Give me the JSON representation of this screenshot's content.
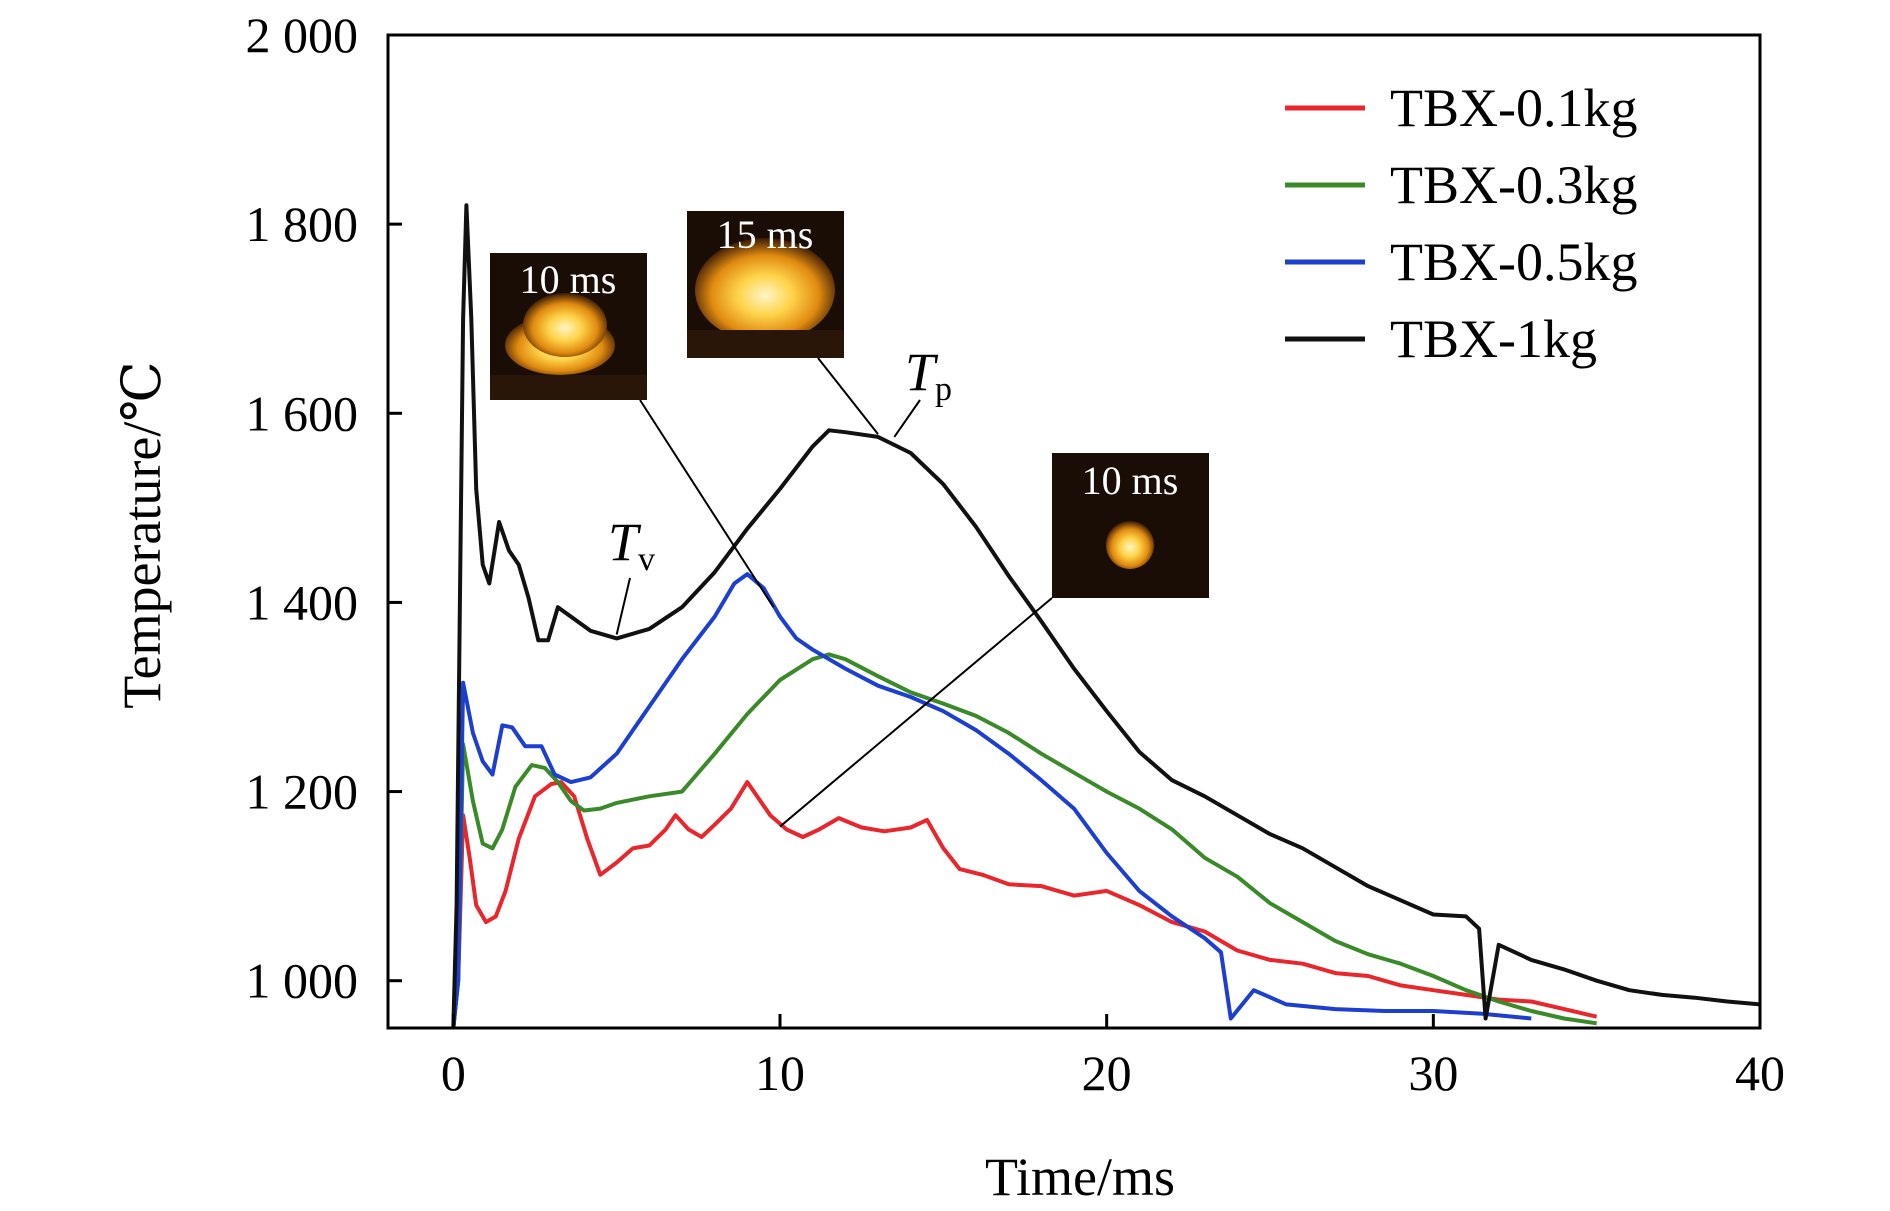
{
  "chart_data": {
    "type": "line",
    "title": "",
    "xlabel": "Time/ms",
    "ylabel": "Temperature/℃",
    "xlim": [
      -2,
      40
    ],
    "ylim": [
      950,
      2000
    ],
    "x_ticks": [
      0,
      10,
      20,
      30,
      40
    ],
    "x_tick_labels": [
      "0",
      "10",
      "20",
      "30",
      "40"
    ],
    "y_ticks": [
      1000,
      1200,
      1400,
      1600,
      1800,
      2000
    ],
    "y_tick_labels": [
      "1 000",
      "1 200",
      "1 400",
      "1 600",
      "1 800",
      "2 000"
    ],
    "grid": false,
    "legend_position": "top-right",
    "series": [
      {
        "name": "TBX-0.1kg",
        "color": "#e8262b",
        "points": [
          [
            0,
            950
          ],
          [
            0.15,
            1000
          ],
          [
            0.3,
            1175
          ],
          [
            0.5,
            1130
          ],
          [
            0.7,
            1080
          ],
          [
            1.0,
            1062
          ],
          [
            1.3,
            1068
          ],
          [
            1.6,
            1095
          ],
          [
            2.0,
            1150
          ],
          [
            2.5,
            1195
          ],
          [
            3.0,
            1208
          ],
          [
            3.3,
            1210
          ],
          [
            3.7,
            1195
          ],
          [
            4.1,
            1150
          ],
          [
            4.5,
            1112
          ],
          [
            5.0,
            1125
          ],
          [
            5.5,
            1140
          ],
          [
            6.0,
            1143
          ],
          [
            6.5,
            1160
          ],
          [
            6.8,
            1175
          ],
          [
            7.2,
            1160
          ],
          [
            7.6,
            1152
          ],
          [
            8.0,
            1165
          ],
          [
            8.5,
            1182
          ],
          [
            9.0,
            1210
          ],
          [
            9.3,
            1195
          ],
          [
            9.7,
            1175
          ],
          [
            10.2,
            1160
          ],
          [
            10.7,
            1152
          ],
          [
            11.2,
            1160
          ],
          [
            11.8,
            1172
          ],
          [
            12.5,
            1162
          ],
          [
            13.2,
            1158
          ],
          [
            14.0,
            1162
          ],
          [
            14.5,
            1170
          ],
          [
            15.0,
            1140
          ],
          [
            15.5,
            1118
          ],
          [
            16.2,
            1112
          ],
          [
            17.0,
            1102
          ],
          [
            18.0,
            1100
          ],
          [
            19.0,
            1090
          ],
          [
            20.0,
            1095
          ],
          [
            21.0,
            1080
          ],
          [
            22.0,
            1062
          ],
          [
            23.0,
            1052
          ],
          [
            24.0,
            1032
          ],
          [
            25.0,
            1022
          ],
          [
            26.0,
            1018
          ],
          [
            27.0,
            1008
          ],
          [
            28.0,
            1005
          ],
          [
            29.0,
            995
          ],
          [
            30.0,
            990
          ],
          [
            31.0,
            985
          ],
          [
            32.0,
            980
          ],
          [
            33.0,
            978
          ],
          [
            34.0,
            970
          ],
          [
            35.0,
            962
          ]
        ]
      },
      {
        "name": "TBX-0.3kg",
        "color": "#3a8a2a",
        "points": [
          [
            0,
            950
          ],
          [
            0.15,
            1000
          ],
          [
            0.3,
            1250
          ],
          [
            0.6,
            1190
          ],
          [
            0.9,
            1145
          ],
          [
            1.2,
            1140
          ],
          [
            1.5,
            1160
          ],
          [
            1.9,
            1205
          ],
          [
            2.4,
            1228
          ],
          [
            2.8,
            1225
          ],
          [
            3.2,
            1210
          ],
          [
            3.6,
            1190
          ],
          [
            4.0,
            1180
          ],
          [
            4.5,
            1182
          ],
          [
            5.0,
            1188
          ],
          [
            6.0,
            1195
          ],
          [
            7.0,
            1200
          ],
          [
            8.0,
            1240
          ],
          [
            9.0,
            1282
          ],
          [
            10.0,
            1318
          ],
          [
            11.0,
            1340
          ],
          [
            11.5,
            1345
          ],
          [
            12.0,
            1340
          ],
          [
            13.0,
            1322
          ],
          [
            14.0,
            1305
          ],
          [
            15.0,
            1293
          ],
          [
            16.0,
            1280
          ],
          [
            17.0,
            1262
          ],
          [
            18.0,
            1240
          ],
          [
            19.0,
            1220
          ],
          [
            20.0,
            1200
          ],
          [
            21.0,
            1182
          ],
          [
            22.0,
            1160
          ],
          [
            23.0,
            1130
          ],
          [
            24.0,
            1110
          ],
          [
            25.0,
            1082
          ],
          [
            26.0,
            1062
          ],
          [
            27.0,
            1042
          ],
          [
            28.0,
            1028
          ],
          [
            29.0,
            1018
          ],
          [
            30.0,
            1005
          ],
          [
            31.0,
            990
          ],
          [
            32.0,
            978
          ],
          [
            33.0,
            968
          ],
          [
            34.0,
            960
          ],
          [
            35.0,
            955
          ]
        ]
      },
      {
        "name": "TBX-0.5kg",
        "color": "#1c3fd0",
        "points": [
          [
            0,
            950
          ],
          [
            0.15,
            1000
          ],
          [
            0.3,
            1315
          ],
          [
            0.6,
            1262
          ],
          [
            0.9,
            1232
          ],
          [
            1.2,
            1218
          ],
          [
            1.5,
            1270
          ],
          [
            1.8,
            1268
          ],
          [
            2.2,
            1248
          ],
          [
            2.7,
            1248
          ],
          [
            3.1,
            1218
          ],
          [
            3.6,
            1210
          ],
          [
            4.2,
            1215
          ],
          [
            5.0,
            1240
          ],
          [
            6.0,
            1290
          ],
          [
            7.0,
            1340
          ],
          [
            8.0,
            1385
          ],
          [
            8.6,
            1420
          ],
          [
            9.0,
            1430
          ],
          [
            9.5,
            1415
          ],
          [
            10.0,
            1385
          ],
          [
            10.5,
            1362
          ],
          [
            11.0,
            1350
          ],
          [
            12.0,
            1330
          ],
          [
            13.0,
            1312
          ],
          [
            14.0,
            1300
          ],
          [
            15.0,
            1285
          ],
          [
            16.0,
            1265
          ],
          [
            17.0,
            1240
          ],
          [
            18.0,
            1212
          ],
          [
            19.0,
            1182
          ],
          [
            20.0,
            1135
          ],
          [
            21.0,
            1095
          ],
          [
            22.0,
            1068
          ],
          [
            23.0,
            1045
          ],
          [
            23.5,
            1030
          ],
          [
            23.8,
            960
          ],
          [
            24.5,
            990
          ],
          [
            25.5,
            975
          ],
          [
            27.0,
            970
          ],
          [
            28.5,
            968
          ],
          [
            30.0,
            968
          ],
          [
            31.5,
            965
          ],
          [
            33.0,
            960
          ]
        ]
      },
      {
        "name": "TBX-1kg",
        "color": "#111111",
        "points": [
          [
            0,
            950
          ],
          [
            0.1,
            1080
          ],
          [
            0.2,
            1400
          ],
          [
            0.3,
            1700
          ],
          [
            0.4,
            1820
          ],
          [
            0.55,
            1700
          ],
          [
            0.7,
            1520
          ],
          [
            0.9,
            1440
          ],
          [
            1.1,
            1420
          ],
          [
            1.4,
            1485
          ],
          [
            1.7,
            1455
          ],
          [
            2.0,
            1440
          ],
          [
            2.3,
            1405
          ],
          [
            2.6,
            1360
          ],
          [
            2.9,
            1360
          ],
          [
            3.2,
            1395
          ],
          [
            3.6,
            1385
          ],
          [
            4.2,
            1370
          ],
          [
            5.0,
            1362
          ],
          [
            6.0,
            1372
          ],
          [
            7.0,
            1395
          ],
          [
            8.0,
            1432
          ],
          [
            9.0,
            1478
          ],
          [
            10.0,
            1520
          ],
          [
            11.0,
            1565
          ],
          [
            11.5,
            1582
          ],
          [
            12.0,
            1580
          ],
          [
            13.0,
            1575
          ],
          [
            14.0,
            1558
          ],
          [
            15.0,
            1525
          ],
          [
            16.0,
            1480
          ],
          [
            17.0,
            1428
          ],
          [
            18.0,
            1380
          ],
          [
            19.0,
            1330
          ],
          [
            20.0,
            1285
          ],
          [
            21.0,
            1242
          ],
          [
            22.0,
            1212
          ],
          [
            23.0,
            1195
          ],
          [
            24.0,
            1175
          ],
          [
            25.0,
            1155
          ],
          [
            26.0,
            1140
          ],
          [
            27.0,
            1120
          ],
          [
            28.0,
            1100
          ],
          [
            29.0,
            1085
          ],
          [
            30.0,
            1070
          ],
          [
            31.0,
            1068
          ],
          [
            31.4,
            1055
          ],
          [
            31.6,
            960
          ],
          [
            32.0,
            1038
          ],
          [
            33.0,
            1022
          ],
          [
            34.0,
            1012
          ],
          [
            35.0,
            1000
          ],
          [
            36.0,
            990
          ],
          [
            37.0,
            985
          ],
          [
            38.0,
            982
          ],
          [
            39.0,
            978
          ],
          [
            40.0,
            975
          ]
        ]
      }
    ],
    "annotations": [
      {
        "main": "T",
        "sub": "v",
        "at": [
          5,
          1366
        ]
      },
      {
        "main": "T",
        "sub": "p",
        "at": [
          13.5,
          1575
        ]
      }
    ],
    "inset_photos": [
      {
        "label": "10 ms",
        "pointer": [
          9.8,
          1395
        ]
      },
      {
        "label": "15 ms",
        "pointer": [
          13.0,
          1578
        ]
      },
      {
        "label": "10 ms",
        "pointer": [
          10.0,
          1163
        ]
      }
    ]
  }
}
